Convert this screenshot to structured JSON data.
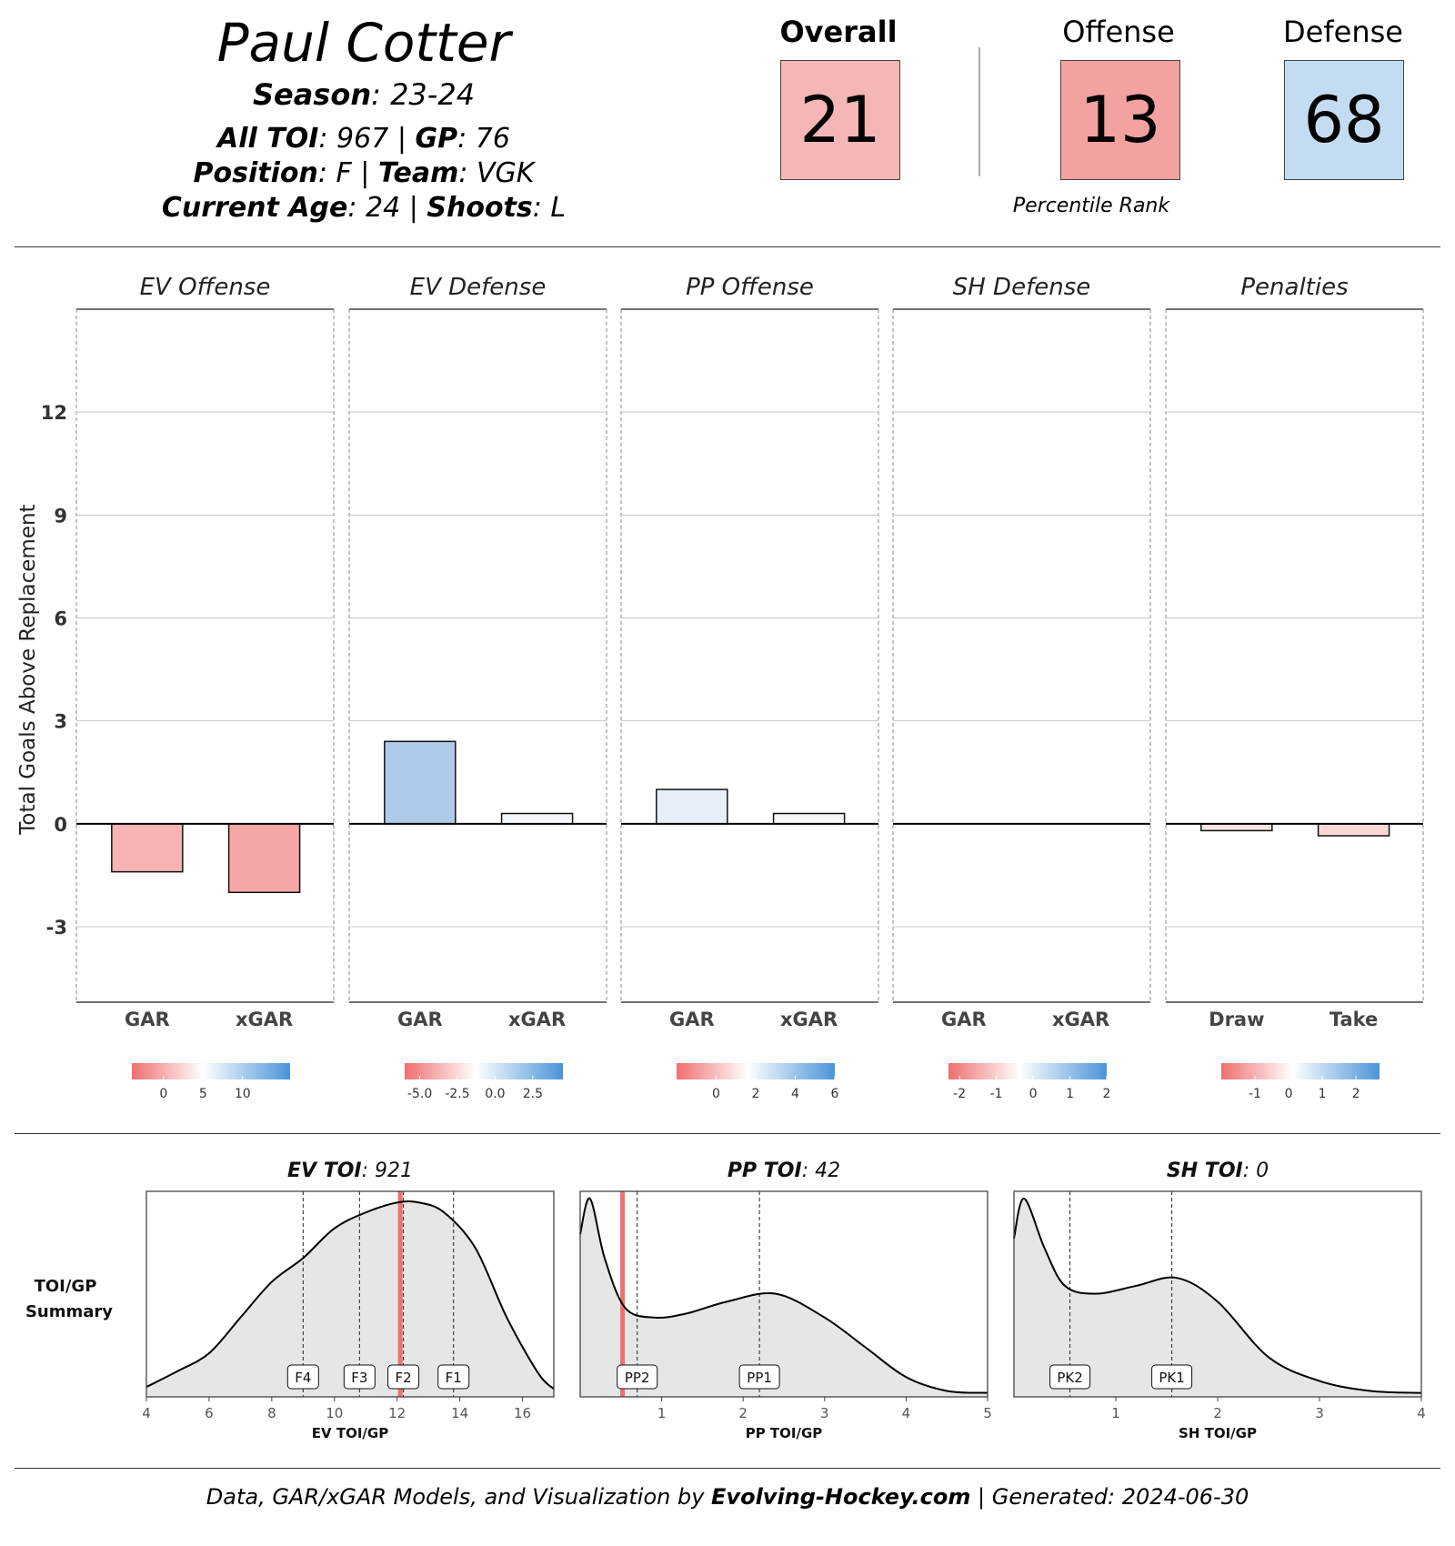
{
  "header": {
    "player_name": "Paul Cotter",
    "season_label": "Season",
    "season_value": ": 23-24",
    "toi_label": "All TOI",
    "toi_value": ": 967 | ",
    "gp_label": "GP",
    "gp_value": ": 76",
    "position_label": "Position",
    "position_value": ": F | ",
    "team_label": "Team",
    "team_value": ": VGK",
    "age_label": "Current Age",
    "age_value": ": 24 | ",
    "shoots_label": "Shoots",
    "shoots_value": ": L"
  },
  "ranks": {
    "overall_label": "Overall",
    "overall_value": "21",
    "overall_color": "#f4b6b6",
    "offense_label": "Offense",
    "offense_value": "13",
    "offense_color": "#f3a1a1",
    "defense_label": "Defense",
    "defense_value": "68",
    "defense_color": "#c4dcf1",
    "caption": "Percentile Rank"
  },
  "colors": {
    "negative": "#ef6f6f",
    "neutral": "#ffffff",
    "positive": "#4a94d8",
    "toi_marker": "#ef7070",
    "density_fill": "#e6e6e6"
  },
  "chart_data": [
    {
      "type": "bar",
      "ylabel": "Total Goals Above Replacement",
      "ylim": [
        -5.2,
        15
      ],
      "yticks": [
        -3,
        0,
        3,
        6,
        9,
        12
      ],
      "grid": true,
      "panels": [
        {
          "title": "EV Offense",
          "categories": [
            "GAR",
            "xGAR"
          ],
          "values": [
            -1.4,
            -2.0
          ],
          "bar_colors": [
            "#f8b4b4",
            "#f5a6a6"
          ],
          "scale_ticks": [
            "0",
            "5",
            "10"
          ],
          "scale_range": [
            -4,
            16
          ]
        },
        {
          "title": "EV Defense",
          "categories": [
            "GAR",
            "xGAR"
          ],
          "values": [
            2.4,
            0.3
          ],
          "bar_colors": [
            "#aecbea",
            "#f5f8fc"
          ],
          "scale_ticks": [
            "-5.0",
            "-2.5",
            "0.0",
            "2.5"
          ],
          "scale_range": [
            -6,
            4.5
          ]
        },
        {
          "title": "PP Offense",
          "categories": [
            "GAR",
            "xGAR"
          ],
          "values": [
            1.0,
            0.3
          ],
          "bar_colors": [
            "#e6eef9",
            "#f8f8fa"
          ],
          "scale_ticks": [
            "0",
            "2",
            "4",
            "6"
          ],
          "scale_range": [
            -2,
            6
          ]
        },
        {
          "title": "SH Defense",
          "categories": [
            "GAR",
            "xGAR"
          ],
          "values": [
            0,
            0
          ],
          "bar_colors": [
            "#ffffff",
            "#ffffff"
          ],
          "scale_ticks": [
            "-2",
            "-1",
            "0",
            "1",
            "2"
          ],
          "scale_range": [
            -2.3,
            2
          ]
        },
        {
          "title": "Penalties",
          "categories": [
            "Draw",
            "Take"
          ],
          "values": [
            -0.2,
            -0.35
          ],
          "bar_colors": [
            "#fbe3e3",
            "#fbd8d8"
          ],
          "scale_ticks": [
            "-1",
            "0",
            "1",
            "2"
          ],
          "scale_range": [
            -2,
            2.7
          ]
        }
      ]
    },
    {
      "type": "area",
      "row_label_1": "TOI/GP",
      "row_label_2": "Summary",
      "panels": [
        {
          "title_key": "EV TOI",
          "title_value": ": 921",
          "xlabel": "EV TOI/GP",
          "xlim": [
            4,
            17
          ],
          "xticks": [
            4,
            6,
            8,
            10,
            12,
            14,
            16
          ],
          "player_value": 12.1,
          "refs": [
            {
              "label": "F4",
              "x": 9.0
            },
            {
              "label": "F3",
              "x": 10.8
            },
            {
              "label": "F2",
              "x": 12.2
            },
            {
              "label": "F1",
              "x": 13.8
            }
          ],
          "density": [
            [
              4,
              0.05
            ],
            [
              5,
              0.13
            ],
            [
              6,
              0.22
            ],
            [
              7,
              0.4
            ],
            [
              8,
              0.58
            ],
            [
              9,
              0.7
            ],
            [
              10,
              0.85
            ],
            [
              11,
              0.93
            ],
            [
              12,
              0.98
            ],
            [
              12.7,
              0.98
            ],
            [
              13.5,
              0.93
            ],
            [
              14.5,
              0.75
            ],
            [
              15.5,
              0.4
            ],
            [
              16.5,
              0.12
            ],
            [
              17,
              0.04
            ]
          ]
        },
        {
          "title_key": "PP TOI",
          "title_value": ": 42",
          "xlabel": "PP TOI/GP",
          "xlim": [
            0,
            5
          ],
          "xticks": [
            1,
            2,
            3,
            4,
            5
          ],
          "player_value": 0.52,
          "refs": [
            {
              "label": "PP2",
              "x": 0.7
            },
            {
              "label": "PP1",
              "x": 2.2
            }
          ],
          "density": [
            [
              0,
              0.82
            ],
            [
              0.12,
              1.0
            ],
            [
              0.3,
              0.7
            ],
            [
              0.55,
              0.45
            ],
            [
              0.9,
              0.4
            ],
            [
              1.3,
              0.42
            ],
            [
              1.8,
              0.48
            ],
            [
              2.4,
              0.52
            ],
            [
              3,
              0.4
            ],
            [
              3.5,
              0.25
            ],
            [
              4,
              0.1
            ],
            [
              4.5,
              0.03
            ],
            [
              5,
              0.02
            ]
          ]
        },
        {
          "title_key": "SH TOI",
          "title_value": ": 0",
          "xlabel": "SH TOI/GP",
          "xlim": [
            0,
            4
          ],
          "xticks": [
            1,
            2,
            3,
            4
          ],
          "player_value": null,
          "refs": [
            {
              "label": "PK2",
              "x": 0.55
            },
            {
              "label": "PK1",
              "x": 1.55
            }
          ],
          "density": [
            [
              0,
              0.8
            ],
            [
              0.1,
              1.0
            ],
            [
              0.3,
              0.75
            ],
            [
              0.5,
              0.56
            ],
            [
              0.8,
              0.52
            ],
            [
              1.2,
              0.56
            ],
            [
              1.6,
              0.6
            ],
            [
              2,
              0.48
            ],
            [
              2.5,
              0.2
            ],
            [
              3,
              0.08
            ],
            [
              3.5,
              0.03
            ],
            [
              4,
              0.02
            ]
          ]
        }
      ]
    }
  ],
  "footer": {
    "prefix": "Data, GAR/xGAR Models, and Visualization by ",
    "brand": "Evolving-Hockey.com",
    "suffix": " | Generated: 2024-06-30"
  }
}
